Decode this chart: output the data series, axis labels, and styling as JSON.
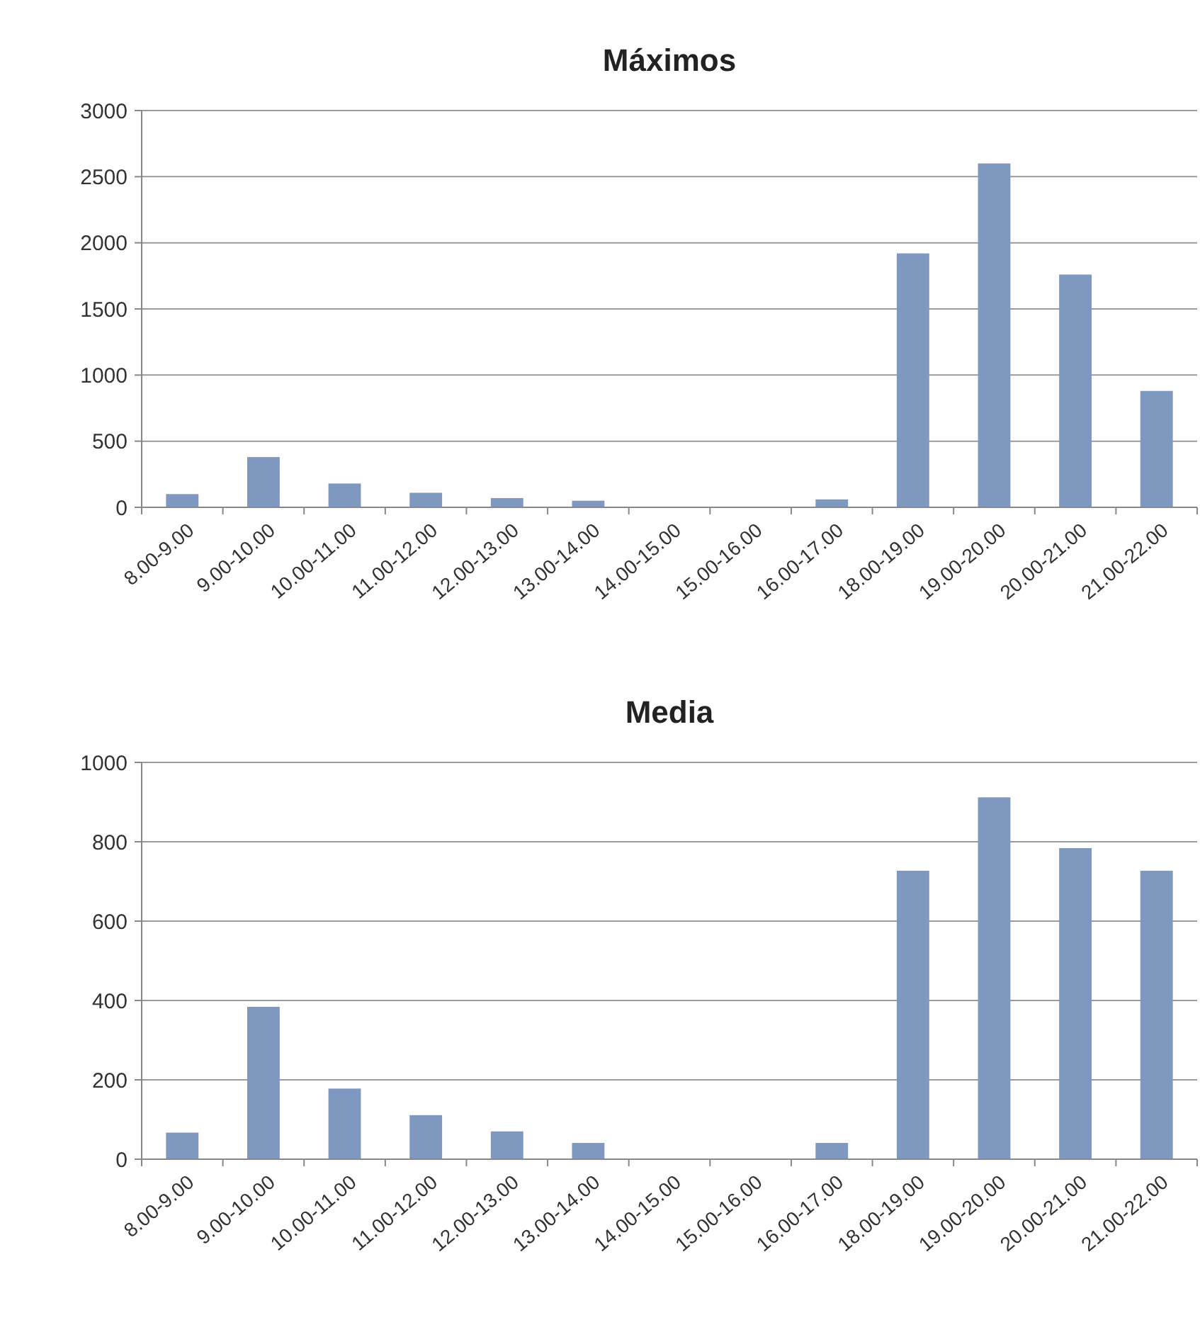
{
  "chart_data": [
    {
      "type": "bar",
      "title": "Máximos",
      "categories": [
        "8.00-9.00",
        "9.00-10.00",
        "10.00-11.00",
        "11.00-12.00",
        "12.00-13.00",
        "13.00-14.00",
        "14.00-15.00",
        "15.00-16.00",
        "16.00-17.00",
        "18.00-19.00",
        "19.00-20.00",
        "20.00-21.00",
        "21.00-22.00"
      ],
      "values": [
        100,
        380,
        180,
        110,
        70,
        50,
        0,
        0,
        60,
        1920,
        2600,
        1760,
        880
      ],
      "color": "#7f98c0",
      "ylim": [
        0,
        3000
      ],
      "yticks": [
        0,
        500,
        1000,
        1500,
        2000,
        2500,
        3000
      ],
      "grid": "y"
    },
    {
      "type": "bar",
      "title": "Media",
      "categories": [
        "8.00-9.00",
        "9.00-10.00",
        "10.00-11.00",
        "11.00-12.00",
        "12.00-13.00",
        "13.00-14.00",
        "14.00-15.00",
        "15.00-16.00",
        "16.00-17.00",
        "18.00-19.00",
        "19.00-20.00",
        "20.00-21.00",
        "21.00-22.00"
      ],
      "values": [
        67,
        384,
        178,
        111,
        70,
        41,
        0,
        0,
        41,
        727,
        912,
        784,
        727
      ],
      "color": "#7f98c0",
      "ylim": [
        0,
        1000
      ],
      "yticks": [
        0,
        200,
        400,
        600,
        800,
        1000
      ],
      "grid": "y"
    }
  ]
}
